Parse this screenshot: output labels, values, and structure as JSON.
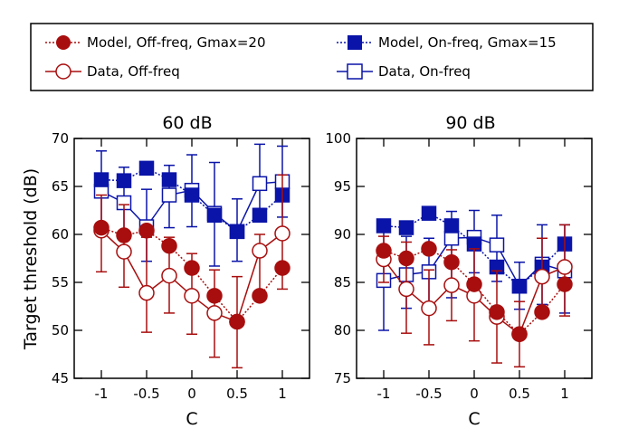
{
  "colors": {
    "off_freq": "#a80e0e",
    "on_freq": "#0a14a8"
  },
  "chart_data": [
    {
      "type": "line",
      "title": "60 dB",
      "xlabel": "C",
      "ylabel": "Target threshold (dB)",
      "xlim": [
        -1.3,
        1.3
      ],
      "ylim": [
        45,
        70
      ],
      "xticks": [
        -1,
        -0.5,
        0,
        0.5,
        1
      ],
      "xtick_labels": [
        "-1",
        "-0.5",
        "0",
        "0.5",
        "1"
      ],
      "yticks": [
        45,
        50,
        55,
        60,
        65,
        70
      ],
      "ytick_labels": [
        "45",
        "50",
        "55",
        "60",
        "65",
        "70"
      ],
      "x": [
        -1,
        -0.75,
        -0.5,
        -0.25,
        0,
        0.25,
        0.5,
        0.75,
        1
      ],
      "series": [
        {
          "name": "Model, Off-freq, Gmax=20",
          "values": [
            60.7,
            59.9,
            60.4,
            58.8,
            56.5,
            53.6,
            50.9,
            53.6,
            56.5
          ]
        },
        {
          "name": "Model, On-freq, Gmax=15",
          "values": [
            65.7,
            65.6,
            66.9,
            65.7,
            64.1,
            62.0,
            60.3,
            62.0,
            64.1
          ]
        },
        {
          "name": "Data, Off-freq",
          "values": [
            60.4,
            58.2,
            53.9,
            55.7,
            53.6,
            51.8,
            50.9,
            58.3,
            60.1
          ],
          "error_low": [
            56.1,
            54.5,
            49.8,
            51.8,
            49.6,
            47.2,
            46.1,
            53.6,
            54.3
          ],
          "error_high": [
            64.1,
            63.1,
            59.7,
            59.7,
            58.0,
            56.3,
            55.6,
            60.0,
            66.2
          ]
        },
        {
          "name": "Data, On-freq",
          "values": [
            64.5,
            63.3,
            60.8,
            64.1,
            64.6,
            62.2,
            60.3,
            65.3,
            65.5
          ],
          "error_low": [
            61.0,
            59.5,
            57.2,
            60.7,
            60.8,
            56.7,
            57.2,
            62.7,
            61.8
          ],
          "error_high": [
            68.7,
            67.0,
            64.7,
            67.2,
            68.3,
            67.5,
            63.7,
            69.4,
            69.2
          ]
        }
      ]
    },
    {
      "type": "line",
      "title": "90 dB",
      "xlabel": "C",
      "ylabel": "",
      "xlim": [
        -1.3,
        1.3
      ],
      "ylim": [
        75,
        100
      ],
      "xticks": [
        -1,
        -0.5,
        0,
        0.5,
        1
      ],
      "xtick_labels": [
        "-1",
        "-0.5",
        "0",
        "0.5",
        "1"
      ],
      "yticks": [
        75,
        80,
        85,
        90,
        95,
        100
      ],
      "ytick_labels": [
        "75",
        "80",
        "85",
        "90",
        "95",
        "100"
      ],
      "x": [
        -1,
        -0.75,
        -0.5,
        -0.25,
        0,
        0.25,
        0.5,
        0.75,
        1
      ],
      "series": [
        {
          "name": "Model, Off-freq, Gmax=20",
          "values": [
            88.3,
            87.5,
            88.5,
            87.1,
            84.8,
            81.9,
            79.6,
            81.9,
            84.8
          ]
        },
        {
          "name": "Model, On-freq, Gmax=15",
          "values": [
            90.9,
            90.7,
            92.2,
            90.9,
            89.0,
            86.6,
            84.6,
            86.6,
            89.0
          ]
        },
        {
          "name": "Data, Off-freq",
          "values": [
            87.4,
            84.3,
            82.3,
            84.7,
            83.6,
            81.4,
            79.6,
            85.6,
            86.6
          ],
          "error_low": [
            85.0,
            79.7,
            78.5,
            81.0,
            78.9,
            76.6,
            76.2,
            81.5,
            81.5
          ],
          "error_high": [
            89.8,
            89.2,
            86.3,
            88.4,
            88.5,
            86.2,
            83.0,
            89.6,
            91.0
          ]
        },
        {
          "name": "Data, On-freq",
          "values": [
            85.2,
            85.8,
            86.1,
            89.6,
            89.7,
            88.9,
            84.6,
            86.9,
            86.2
          ],
          "error_low": [
            80.0,
            82.3,
            82.7,
            83.4,
            86.0,
            85.1,
            82.2,
            82.7,
            81.8
          ],
          "error_high": [
            90.8,
            89.8,
            89.6,
            92.4,
            92.5,
            92.0,
            87.1,
            91.0,
            91.0
          ]
        }
      ]
    }
  ],
  "legend": {
    "items": [
      {
        "label": "Model, Off-freq, Gmax=20"
      },
      {
        "label": "Model, On-freq, Gmax=15"
      },
      {
        "label": "Data, Off-freq"
      },
      {
        "label": "Data, On-freq"
      }
    ]
  }
}
